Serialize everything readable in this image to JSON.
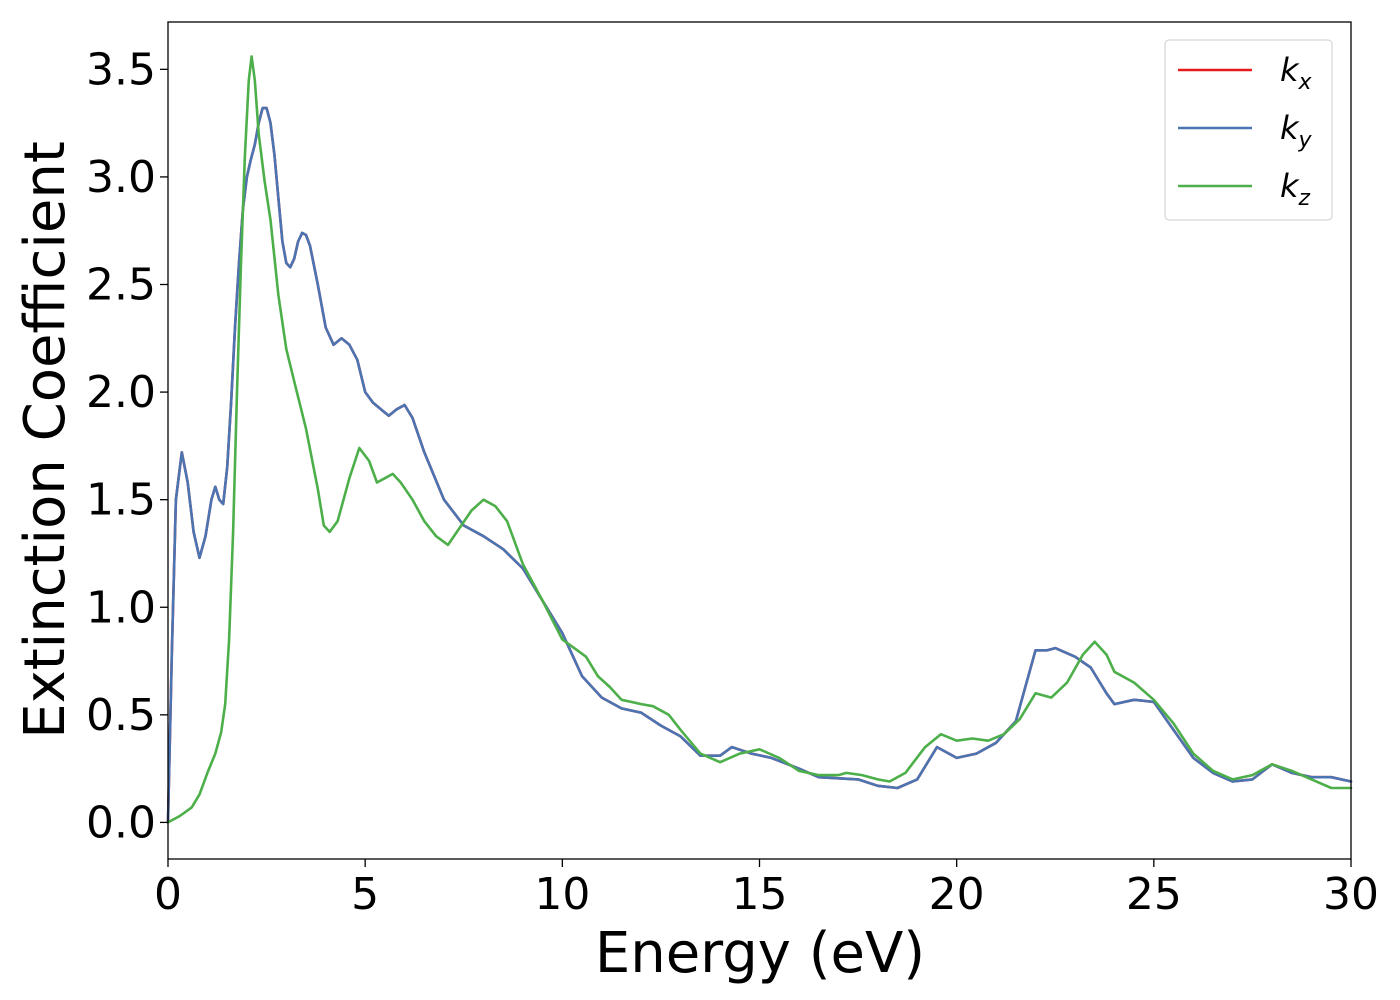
{
  "chart_data": {
    "type": "line",
    "xlabel": "Energy (eV)",
    "ylabel": "Extinction Coefficient",
    "xlim": [
      0,
      30
    ],
    "ylim": [
      -0.17,
      3.72
    ],
    "x_ticks": [
      "0",
      "5",
      "10",
      "15",
      "20",
      "25",
      "30"
    ],
    "y_ticks": [
      "0.0",
      "0.5",
      "1.0",
      "1.5",
      "2.0",
      "2.5",
      "3.0",
      "3.5"
    ],
    "grid": false,
    "legend_position": "top-right",
    "series": [
      {
        "name": "k_x",
        "legend_main": "k",
        "legend_sub": "x",
        "color": "#e41a1c",
        "points": [
          [
            0,
            0
          ],
          [
            0.1,
            0.8
          ],
          [
            0.2,
            1.5
          ],
          [
            0.35,
            1.72
          ],
          [
            0.5,
            1.58
          ],
          [
            0.65,
            1.35
          ],
          [
            0.8,
            1.23
          ],
          [
            0.95,
            1.33
          ],
          [
            1.1,
            1.5
          ],
          [
            1.2,
            1.56
          ],
          [
            1.3,
            1.5
          ],
          [
            1.4,
            1.48
          ],
          [
            1.5,
            1.65
          ],
          [
            1.6,
            1.95
          ],
          [
            1.7,
            2.3
          ],
          [
            1.8,
            2.6
          ],
          [
            1.9,
            2.85
          ],
          [
            2.0,
            3.0
          ],
          [
            2.1,
            3.08
          ],
          [
            2.2,
            3.15
          ],
          [
            2.3,
            3.25
          ],
          [
            2.4,
            3.32
          ],
          [
            2.5,
            3.32
          ],
          [
            2.6,
            3.25
          ],
          [
            2.7,
            3.1
          ],
          [
            2.8,
            2.9
          ],
          [
            2.9,
            2.7
          ],
          [
            3.0,
            2.6
          ],
          [
            3.1,
            2.58
          ],
          [
            3.2,
            2.62
          ],
          [
            3.3,
            2.7
          ],
          [
            3.4,
            2.74
          ],
          [
            3.5,
            2.73
          ],
          [
            3.6,
            2.68
          ],
          [
            3.8,
            2.5
          ],
          [
            4.0,
            2.3
          ],
          [
            4.2,
            2.22
          ],
          [
            4.4,
            2.25
          ],
          [
            4.6,
            2.22
          ],
          [
            4.8,
            2.15
          ],
          [
            5.0,
            2.0
          ],
          [
            5.2,
            1.95
          ],
          [
            5.4,
            1.92
          ],
          [
            5.6,
            1.89
          ],
          [
            5.8,
            1.92
          ],
          [
            6.0,
            1.94
          ],
          [
            6.2,
            1.88
          ],
          [
            6.5,
            1.72
          ],
          [
            7.0,
            1.5
          ],
          [
            7.5,
            1.38
          ],
          [
            8.0,
            1.33
          ],
          [
            8.5,
            1.27
          ],
          [
            9.0,
            1.18
          ],
          [
            9.5,
            1.03
          ],
          [
            10.0,
            0.88
          ],
          [
            10.5,
            0.68
          ],
          [
            11.0,
            0.58
          ],
          [
            11.5,
            0.53
          ],
          [
            12.0,
            0.51
          ],
          [
            12.5,
            0.45
          ],
          [
            13.0,
            0.4
          ],
          [
            13.5,
            0.31
          ],
          [
            14.0,
            0.31
          ],
          [
            14.3,
            0.35
          ],
          [
            14.8,
            0.32
          ],
          [
            15.3,
            0.3
          ],
          [
            16.0,
            0.25
          ],
          [
            16.5,
            0.21
          ],
          [
            17.5,
            0.2
          ],
          [
            18.0,
            0.17
          ],
          [
            18.5,
            0.16
          ],
          [
            19.0,
            0.2
          ],
          [
            19.5,
            0.35
          ],
          [
            20.0,
            0.3
          ],
          [
            20.5,
            0.32
          ],
          [
            21.0,
            0.37
          ],
          [
            21.5,
            0.47
          ],
          [
            22.0,
            0.8
          ],
          [
            22.3,
            0.8
          ],
          [
            22.5,
            0.81
          ],
          [
            23.0,
            0.77
          ],
          [
            23.4,
            0.72
          ],
          [
            23.8,
            0.6
          ],
          [
            24.0,
            0.55
          ],
          [
            24.5,
            0.57
          ],
          [
            25.0,
            0.56
          ],
          [
            25.5,
            0.43
          ],
          [
            26.0,
            0.3
          ],
          [
            26.5,
            0.23
          ],
          [
            27.0,
            0.19
          ],
          [
            27.5,
            0.2
          ],
          [
            28.0,
            0.27
          ],
          [
            28.5,
            0.23
          ],
          [
            29.0,
            0.21
          ],
          [
            29.5,
            0.21
          ],
          [
            30,
            0.19
          ]
        ]
      },
      {
        "name": "k_y",
        "legend_main": "k",
        "legend_sub": "y",
        "color": "#4b74b2",
        "points": [
          [
            0,
            0
          ],
          [
            0.1,
            0.8
          ],
          [
            0.2,
            1.5
          ],
          [
            0.35,
            1.72
          ],
          [
            0.5,
            1.58
          ],
          [
            0.65,
            1.35
          ],
          [
            0.8,
            1.23
          ],
          [
            0.95,
            1.33
          ],
          [
            1.1,
            1.5
          ],
          [
            1.2,
            1.56
          ],
          [
            1.3,
            1.5
          ],
          [
            1.4,
            1.48
          ],
          [
            1.5,
            1.65
          ],
          [
            1.6,
            1.95
          ],
          [
            1.7,
            2.3
          ],
          [
            1.8,
            2.6
          ],
          [
            1.9,
            2.85
          ],
          [
            2.0,
            3.0
          ],
          [
            2.1,
            3.08
          ],
          [
            2.2,
            3.15
          ],
          [
            2.3,
            3.25
          ],
          [
            2.4,
            3.32
          ],
          [
            2.5,
            3.32
          ],
          [
            2.6,
            3.25
          ],
          [
            2.7,
            3.1
          ],
          [
            2.8,
            2.9
          ],
          [
            2.9,
            2.7
          ],
          [
            3.0,
            2.6
          ],
          [
            3.1,
            2.58
          ],
          [
            3.2,
            2.62
          ],
          [
            3.3,
            2.7
          ],
          [
            3.4,
            2.74
          ],
          [
            3.5,
            2.73
          ],
          [
            3.6,
            2.68
          ],
          [
            3.8,
            2.5
          ],
          [
            4.0,
            2.3
          ],
          [
            4.2,
            2.22
          ],
          [
            4.4,
            2.25
          ],
          [
            4.6,
            2.22
          ],
          [
            4.8,
            2.15
          ],
          [
            5.0,
            2.0
          ],
          [
            5.2,
            1.95
          ],
          [
            5.4,
            1.92
          ],
          [
            5.6,
            1.89
          ],
          [
            5.8,
            1.92
          ],
          [
            6.0,
            1.94
          ],
          [
            6.2,
            1.88
          ],
          [
            6.5,
            1.72
          ],
          [
            7.0,
            1.5
          ],
          [
            7.5,
            1.38
          ],
          [
            8.0,
            1.33
          ],
          [
            8.5,
            1.27
          ],
          [
            9.0,
            1.18
          ],
          [
            9.5,
            1.03
          ],
          [
            10.0,
            0.88
          ],
          [
            10.5,
            0.68
          ],
          [
            11.0,
            0.58
          ],
          [
            11.5,
            0.53
          ],
          [
            12.0,
            0.51
          ],
          [
            12.5,
            0.45
          ],
          [
            13.0,
            0.4
          ],
          [
            13.5,
            0.31
          ],
          [
            14.0,
            0.31
          ],
          [
            14.3,
            0.35
          ],
          [
            14.8,
            0.32
          ],
          [
            15.3,
            0.3
          ],
          [
            16.0,
            0.25
          ],
          [
            16.5,
            0.21
          ],
          [
            17.5,
            0.2
          ],
          [
            18.0,
            0.17
          ],
          [
            18.5,
            0.16
          ],
          [
            19.0,
            0.2
          ],
          [
            19.5,
            0.35
          ],
          [
            20.0,
            0.3
          ],
          [
            20.5,
            0.32
          ],
          [
            21.0,
            0.37
          ],
          [
            21.5,
            0.47
          ],
          [
            22.0,
            0.8
          ],
          [
            22.3,
            0.8
          ],
          [
            22.5,
            0.81
          ],
          [
            23.0,
            0.77
          ],
          [
            23.4,
            0.72
          ],
          [
            23.8,
            0.6
          ],
          [
            24.0,
            0.55
          ],
          [
            24.5,
            0.57
          ],
          [
            25.0,
            0.56
          ],
          [
            25.5,
            0.43
          ],
          [
            26.0,
            0.3
          ],
          [
            26.5,
            0.23
          ],
          [
            27.0,
            0.19
          ],
          [
            27.5,
            0.2
          ],
          [
            28.0,
            0.27
          ],
          [
            28.5,
            0.23
          ],
          [
            29.0,
            0.21
          ],
          [
            29.5,
            0.21
          ],
          [
            30,
            0.19
          ]
        ]
      },
      {
        "name": "k_z",
        "legend_main": "k",
        "legend_sub": "z",
        "color": "#4daf4a",
        "points": [
          [
            0,
            0
          ],
          [
            0.3,
            0.03
          ],
          [
            0.6,
            0.07
          ],
          [
            0.8,
            0.13
          ],
          [
            1.0,
            0.23
          ],
          [
            1.2,
            0.32
          ],
          [
            1.35,
            0.42
          ],
          [
            1.45,
            0.55
          ],
          [
            1.55,
            0.85
          ],
          [
            1.65,
            1.35
          ],
          [
            1.75,
            2.0
          ],
          [
            1.85,
            2.6
          ],
          [
            1.95,
            3.1
          ],
          [
            2.05,
            3.45
          ],
          [
            2.12,
            3.56
          ],
          [
            2.2,
            3.45
          ],
          [
            2.3,
            3.2
          ],
          [
            2.45,
            2.98
          ],
          [
            2.6,
            2.8
          ],
          [
            2.8,
            2.45
          ],
          [
            3.0,
            2.2
          ],
          [
            3.2,
            2.05
          ],
          [
            3.5,
            1.83
          ],
          [
            3.8,
            1.55
          ],
          [
            3.95,
            1.38
          ],
          [
            4.1,
            1.35
          ],
          [
            4.3,
            1.4
          ],
          [
            4.6,
            1.6
          ],
          [
            4.85,
            1.74
          ],
          [
            5.1,
            1.68
          ],
          [
            5.3,
            1.58
          ],
          [
            5.5,
            1.6
          ],
          [
            5.7,
            1.62
          ],
          [
            5.9,
            1.58
          ],
          [
            6.2,
            1.5
          ],
          [
            6.5,
            1.4
          ],
          [
            6.8,
            1.33
          ],
          [
            7.1,
            1.29
          ],
          [
            7.4,
            1.37
          ],
          [
            7.7,
            1.45
          ],
          [
            8.0,
            1.5
          ],
          [
            8.3,
            1.47
          ],
          [
            8.6,
            1.4
          ],
          [
            9.0,
            1.2
          ],
          [
            9.5,
            1.03
          ],
          [
            10.0,
            0.85
          ],
          [
            10.3,
            0.81
          ],
          [
            10.6,
            0.77
          ],
          [
            10.9,
            0.68
          ],
          [
            11.2,
            0.63
          ],
          [
            11.5,
            0.57
          ],
          [
            12.0,
            0.55
          ],
          [
            12.3,
            0.54
          ],
          [
            12.7,
            0.5
          ],
          [
            13.0,
            0.43
          ],
          [
            13.5,
            0.32
          ],
          [
            14.0,
            0.28
          ],
          [
            14.5,
            0.32
          ],
          [
            15.0,
            0.34
          ],
          [
            15.5,
            0.3
          ],
          [
            16.0,
            0.24
          ],
          [
            16.5,
            0.22
          ],
          [
            17.0,
            0.22
          ],
          [
            17.2,
            0.23
          ],
          [
            17.6,
            0.22
          ],
          [
            18.0,
            0.2
          ],
          [
            18.3,
            0.19
          ],
          [
            18.7,
            0.23
          ],
          [
            19.2,
            0.35
          ],
          [
            19.6,
            0.41
          ],
          [
            20.0,
            0.38
          ],
          [
            20.4,
            0.39
          ],
          [
            20.8,
            0.38
          ],
          [
            21.2,
            0.41
          ],
          [
            21.6,
            0.48
          ],
          [
            22.0,
            0.6
          ],
          [
            22.4,
            0.58
          ],
          [
            22.8,
            0.65
          ],
          [
            23.2,
            0.78
          ],
          [
            23.5,
            0.84
          ],
          [
            23.8,
            0.78
          ],
          [
            24.0,
            0.7
          ],
          [
            24.5,
            0.65
          ],
          [
            25.0,
            0.57
          ],
          [
            25.5,
            0.46
          ],
          [
            26.0,
            0.32
          ],
          [
            26.5,
            0.24
          ],
          [
            27.0,
            0.2
          ],
          [
            27.5,
            0.22
          ],
          [
            28.0,
            0.27
          ],
          [
            28.5,
            0.24
          ],
          [
            29.0,
            0.2
          ],
          [
            29.5,
            0.16
          ],
          [
            30,
            0.16
          ]
        ]
      }
    ]
  }
}
